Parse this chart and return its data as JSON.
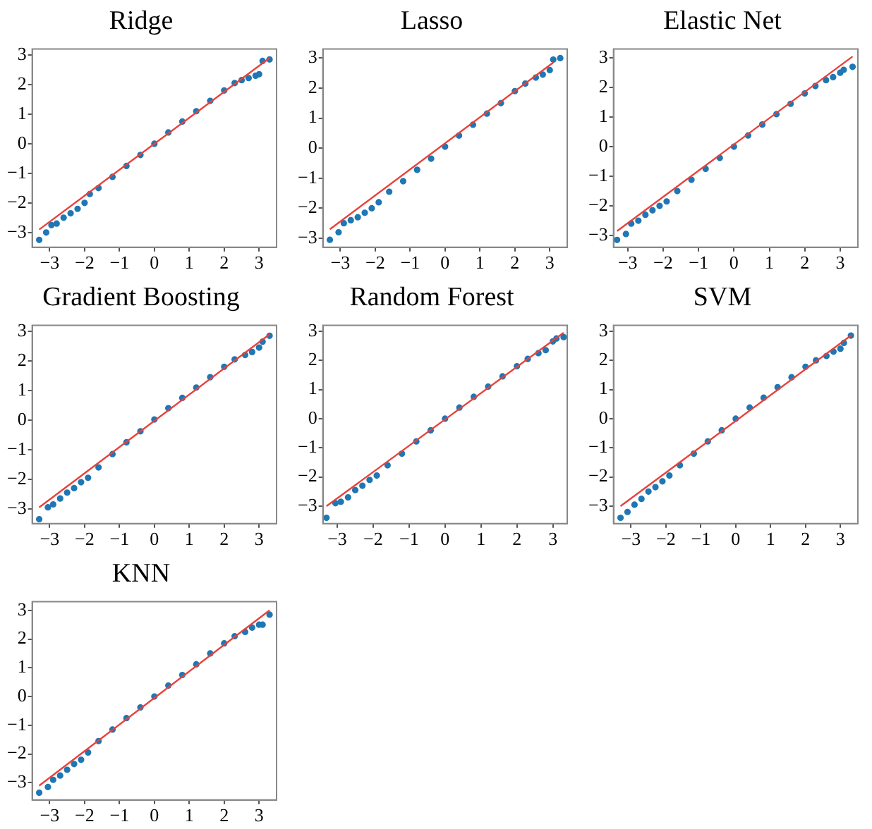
{
  "chart_data": [
    {
      "type": "scatter",
      "title": "Ridge",
      "xlim": [
        -3.5,
        3.5
      ],
      "ylim": [
        -3.5,
        3.2
      ],
      "xticks": [
        -3,
        -2,
        -1,
        0,
        1,
        2,
        3
      ],
      "yticks": [
        -3,
        -2,
        -1,
        0,
        1,
        2,
        3
      ],
      "grid": false,
      "series": [
        {
          "marker": "circle",
          "color": "#1f77b4",
          "x": [
            -3.3,
            -3.1,
            -2.95,
            -2.8,
            -2.6,
            -2.4,
            -2.2,
            -2.0,
            -1.85,
            -1.6,
            -1.2,
            -0.8,
            -0.4,
            0,
            0.4,
            0.8,
            1.2,
            1.6,
            2.0,
            2.3,
            2.5,
            2.7,
            2.9,
            3.0,
            3.1,
            3.3
          ],
          "values": [
            -3.25,
            -3.0,
            -2.75,
            -2.7,
            -2.5,
            -2.35,
            -2.2,
            -2.0,
            -1.7,
            -1.5,
            -1.12,
            -0.75,
            -0.38,
            0,
            0.38,
            0.75,
            1.1,
            1.45,
            1.8,
            2.05,
            2.15,
            2.22,
            2.3,
            2.35,
            2.8,
            2.85
          ]
        },
        {
          "type": "line",
          "marker": "none",
          "color": "#e8413a",
          "x": [
            -3.3,
            3.3
          ],
          "values": [
            -2.9,
            2.9
          ]
        }
      ]
    },
    {
      "type": "scatter",
      "title": "Lasso",
      "xlim": [
        -3.5,
        3.5
      ],
      "ylim": [
        -3.3,
        3.3
      ],
      "xticks": [
        -3,
        -2,
        -1,
        0,
        1,
        2,
        3
      ],
      "yticks": [
        -3,
        -2,
        -1,
        0,
        1,
        2,
        3
      ],
      "grid": false,
      "series": [
        {
          "marker": "circle",
          "color": "#1f77b4",
          "x": [
            -3.3,
            -3.05,
            -2.9,
            -2.7,
            -2.5,
            -2.3,
            -2.1,
            -1.9,
            -1.6,
            -1.2,
            -0.8,
            -0.4,
            0,
            0.4,
            0.8,
            1.2,
            1.6,
            2.0,
            2.3,
            2.6,
            2.8,
            3.0,
            3.1,
            3.3
          ],
          "values": [
            -3.05,
            -2.8,
            -2.5,
            -2.4,
            -2.3,
            -2.15,
            -2.0,
            -1.8,
            -1.45,
            -1.1,
            -0.72,
            -0.35,
            0.05,
            0.42,
            0.78,
            1.15,
            1.5,
            1.9,
            2.15,
            2.35,
            2.45,
            2.6,
            2.95,
            3.0
          ]
        },
        {
          "type": "line",
          "marker": "none",
          "color": "#e8413a",
          "x": [
            -3.3,
            3.1
          ],
          "values": [
            -2.7,
            2.85
          ]
        }
      ]
    },
    {
      "type": "scatter",
      "title": "Elastic Net",
      "xlim": [
        -3.4,
        3.5
      ],
      "ylim": [
        -3.4,
        3.3
      ],
      "xticks": [
        -3,
        -2,
        -1,
        0,
        1,
        2,
        3
      ],
      "yticks": [
        -3,
        -2,
        -1,
        0,
        1,
        2,
        3
      ],
      "grid": false,
      "series": [
        {
          "marker": "circle",
          "color": "#1f77b4",
          "x": [
            -3.3,
            -3.05,
            -2.9,
            -2.7,
            -2.5,
            -2.3,
            -2.1,
            -1.9,
            -1.6,
            -1.2,
            -0.8,
            -0.4,
            0,
            0.4,
            0.8,
            1.2,
            1.6,
            2.0,
            2.3,
            2.6,
            2.8,
            3.0,
            3.1,
            3.35
          ],
          "values": [
            -3.15,
            -2.95,
            -2.6,
            -2.5,
            -2.3,
            -2.15,
            -2.0,
            -1.85,
            -1.5,
            -1.12,
            -0.75,
            -0.38,
            0,
            0.38,
            0.75,
            1.1,
            1.45,
            1.8,
            2.05,
            2.25,
            2.35,
            2.5,
            2.6,
            2.7
          ]
        },
        {
          "type": "line",
          "marker": "none",
          "color": "#e8413a",
          "x": [
            -3.3,
            3.35
          ],
          "values": [
            -2.85,
            3.05
          ]
        }
      ]
    },
    {
      "type": "scatter",
      "title": "Gradient Boosting",
      "xlim": [
        -3.5,
        3.5
      ],
      "ylim": [
        -3.5,
        3.2
      ],
      "xticks": [
        -3,
        -2,
        -1,
        0,
        1,
        2,
        3
      ],
      "yticks": [
        -3,
        -2,
        -1,
        0,
        1,
        2,
        3
      ],
      "grid": false,
      "series": [
        {
          "marker": "circle",
          "color": "#1f77b4",
          "x": [
            -3.3,
            -3.05,
            -2.9,
            -2.7,
            -2.5,
            -2.3,
            -2.1,
            -1.9,
            -1.6,
            -1.2,
            -0.8,
            -0.4,
            0,
            0.4,
            0.8,
            1.2,
            1.6,
            2.0,
            2.3,
            2.6,
            2.8,
            3.0,
            3.1,
            3.3
          ],
          "values": [
            -3.35,
            -2.95,
            -2.85,
            -2.65,
            -2.45,
            -2.3,
            -2.1,
            -1.95,
            -1.6,
            -1.15,
            -0.75,
            -0.38,
            0.02,
            0.4,
            0.75,
            1.1,
            1.45,
            1.8,
            2.05,
            2.2,
            2.3,
            2.45,
            2.65,
            2.85
          ]
        },
        {
          "type": "line",
          "marker": "none",
          "color": "#e8413a",
          "x": [
            -3.3,
            3.3
          ],
          "values": [
            -2.95,
            2.9
          ]
        }
      ]
    },
    {
      "type": "scatter",
      "title": "Random Forest",
      "xlim": [
        -3.4,
        3.4
      ],
      "ylim": [
        -3.6,
        3.2
      ],
      "xticks": [
        -3,
        -2,
        -1,
        0,
        1,
        2,
        3
      ],
      "yticks": [
        -3,
        -2,
        -1,
        0,
        1,
        2,
        3
      ],
      "grid": false,
      "series": [
        {
          "marker": "circle",
          "color": "#1f77b4",
          "x": [
            -3.3,
            -3.05,
            -2.9,
            -2.7,
            -2.5,
            -2.3,
            -2.1,
            -1.9,
            -1.6,
            -1.2,
            -0.8,
            -0.4,
            0,
            0.4,
            0.8,
            1.2,
            1.6,
            2.0,
            2.3,
            2.6,
            2.8,
            3.0,
            3.1,
            3.3
          ],
          "values": [
            -3.4,
            -2.9,
            -2.85,
            -2.7,
            -2.45,
            -2.3,
            -2.1,
            -1.95,
            -1.6,
            -1.2,
            -0.78,
            -0.4,
            0,
            0.38,
            0.75,
            1.1,
            1.45,
            1.8,
            2.05,
            2.25,
            2.35,
            2.65,
            2.75,
            2.8
          ]
        },
        {
          "type": "line",
          "marker": "none",
          "color": "#e8413a",
          "x": [
            -3.3,
            3.3
          ],
          "values": [
            -3.0,
            2.95
          ]
        }
      ]
    },
    {
      "type": "scatter",
      "title": "SVM",
      "xlim": [
        -3.5,
        3.5
      ],
      "ylim": [
        -3.6,
        3.2
      ],
      "xticks": [
        -3,
        -2,
        -1,
        0,
        1,
        2,
        3
      ],
      "yticks": [
        -3,
        -2,
        -1,
        0,
        1,
        2,
        3
      ],
      "grid": false,
      "series": [
        {
          "marker": "circle",
          "color": "#1f77b4",
          "x": [
            -3.3,
            -3.1,
            -2.9,
            -2.7,
            -2.5,
            -2.3,
            -2.1,
            -1.9,
            -1.6,
            -1.2,
            -0.8,
            -0.4,
            0,
            0.4,
            0.8,
            1.2,
            1.6,
            2.0,
            2.3,
            2.6,
            2.8,
            3.0,
            3.1,
            3.3
          ],
          "values": [
            -3.4,
            -3.2,
            -2.95,
            -2.75,
            -2.5,
            -2.35,
            -2.15,
            -1.95,
            -1.6,
            -1.2,
            -0.78,
            -0.4,
            0,
            0.38,
            0.72,
            1.08,
            1.42,
            1.78,
            2.0,
            2.15,
            2.3,
            2.4,
            2.6,
            2.85
          ]
        },
        {
          "type": "line",
          "marker": "none",
          "color": "#e8413a",
          "x": [
            -3.3,
            3.3
          ],
          "values": [
            -3.0,
            2.85
          ]
        }
      ]
    },
    {
      "type": "scatter",
      "title": "KNN",
      "xlim": [
        -3.5,
        3.5
      ],
      "ylim": [
        -3.6,
        3.3
      ],
      "xticks": [
        -3,
        -2,
        -1,
        0,
        1,
        2,
        3
      ],
      "yticks": [
        -3,
        -2,
        -1,
        0,
        1,
        2,
        3
      ],
      "grid": false,
      "series": [
        {
          "marker": "circle",
          "color": "#1f77b4",
          "x": [
            -3.3,
            -3.05,
            -2.9,
            -2.7,
            -2.5,
            -2.3,
            -2.1,
            -1.9,
            -1.6,
            -1.2,
            -0.8,
            -0.4,
            0,
            0.4,
            0.8,
            1.2,
            1.6,
            2.0,
            2.3,
            2.6,
            2.8,
            3.0,
            3.1,
            3.3
          ],
          "values": [
            -3.35,
            -3.15,
            -2.9,
            -2.75,
            -2.55,
            -2.35,
            -2.2,
            -1.95,
            -1.55,
            -1.15,
            -0.75,
            -0.38,
            0,
            0.38,
            0.75,
            1.12,
            1.5,
            1.85,
            2.1,
            2.25,
            2.4,
            2.5,
            2.5,
            2.85
          ]
        },
        {
          "type": "line",
          "marker": "none",
          "color": "#e8413a",
          "x": [
            -3.3,
            3.3
          ],
          "values": [
            -3.1,
            3.0
          ]
        }
      ]
    }
  ]
}
